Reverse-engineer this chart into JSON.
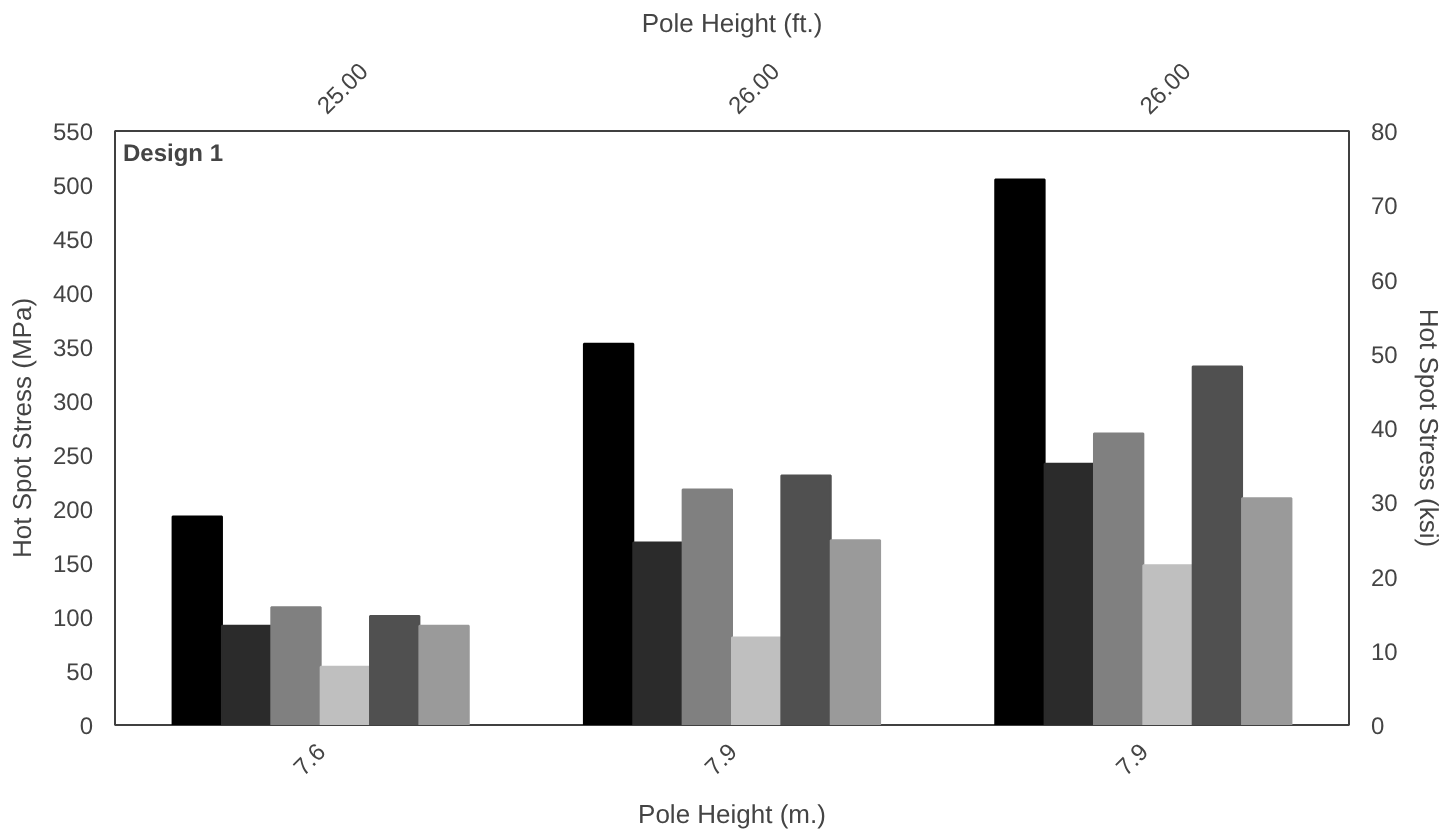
{
  "chart_data": {
    "type": "bar",
    "categories": [
      "7.6",
      "7.9",
      "7.9"
    ],
    "xlabel": "Pole Height (m.)",
    "x2label": "Pole Height (ft.)",
    "ylabel": "Hot Spot Stress (MPa)",
    "y2label": "Hot Spot Stress (ksi)",
    "ylim": [
      0,
      550
    ],
    "yticks": [
      0,
      50,
      100,
      150,
      200,
      250,
      300,
      350,
      400,
      450,
      500,
      550
    ],
    "y2lim": [
      0,
      80
    ],
    "y2ticks": [
      0,
      10,
      20,
      30,
      40,
      50,
      60,
      70,
      80
    ],
    "annotations": [
      "Design 1",
      "25.00",
      "26.00",
      "26.00"
    ],
    "grid": false,
    "series": [
      {
        "color": "#000000",
        "values": [
          193,
          353,
          505
        ]
      },
      {
        "color": "#2b2b2b",
        "values": [
          92,
          169,
          242
        ]
      },
      {
        "color": "#808080",
        "values": [
          109,
          218,
          270
        ]
      },
      {
        "color": "#bfbfbf",
        "values": [
          54,
          81,
          148
        ]
      },
      {
        "color": "#505050",
        "values": [
          101,
          231,
          332
        ]
      },
      {
        "color": "#9a9a9a",
        "values": [
          92,
          171,
          210
        ]
      }
    ]
  }
}
